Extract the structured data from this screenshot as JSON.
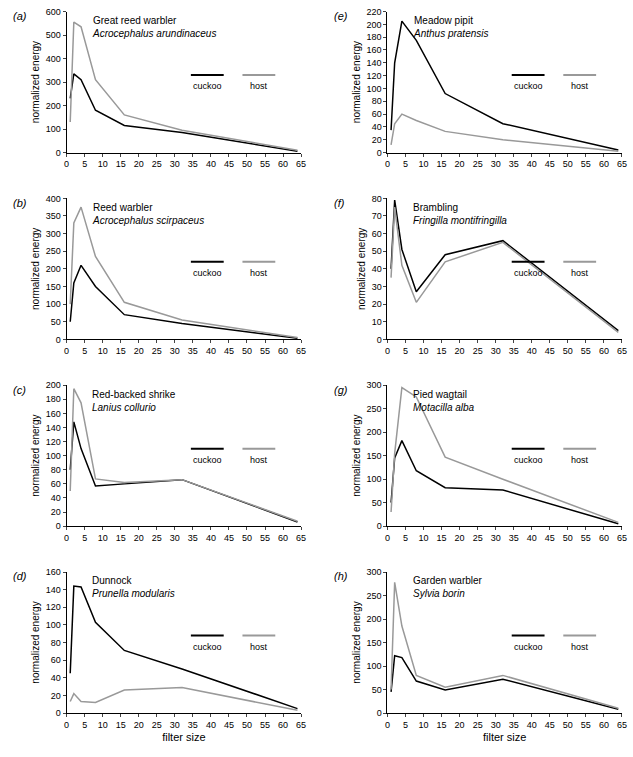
{
  "chart_data": [
    {
      "type": "line",
      "title": "Great reed warbler",
      "subtitle": "Acrocephalus arundinaceus",
      "annotations": [
        "(a)"
      ],
      "y_label": "normalized energy",
      "x": [
        1,
        2,
        4,
        8,
        16,
        32,
        64
      ],
      "series": [
        {
          "name": "cuckoo",
          "color": "#000000",
          "values": [
            230,
            335,
            310,
            180,
            115,
            85,
            5
          ]
        },
        {
          "name": "host",
          "color": "#999999",
          "values": [
            130,
            555,
            535,
            310,
            160,
            95,
            10
          ]
        }
      ],
      "xlim": [
        0,
        65
      ],
      "xticks": [
        0,
        5,
        10,
        15,
        20,
        25,
        30,
        35,
        40,
        45,
        50,
        55,
        60,
        65
      ],
      "ylim": [
        0,
        600
      ],
      "yticks": [
        0,
        100,
        200,
        300,
        400,
        500,
        600
      ],
      "grid": false
    },
    {
      "type": "line",
      "title": "Reed warbler",
      "subtitle": "Acrocephalus scirpaceus",
      "annotations": [
        "(b)"
      ],
      "y_label": "normalized energy",
      "x": [
        1,
        2,
        4,
        8,
        16,
        32,
        64
      ],
      "series": [
        {
          "name": "cuckoo",
          "color": "#000000",
          "values": [
            50,
            160,
            210,
            150,
            70,
            45,
            3
          ]
        },
        {
          "name": "host",
          "color": "#999999",
          "values": [
            100,
            330,
            375,
            235,
            105,
            55,
            5
          ]
        }
      ],
      "xlim": [
        0,
        65
      ],
      "xticks": [
        0,
        5,
        10,
        15,
        20,
        25,
        30,
        35,
        40,
        45,
        50,
        55,
        60,
        65
      ],
      "ylim": [
        0,
        400
      ],
      "yticks": [
        0,
        50,
        100,
        150,
        200,
        250,
        300,
        350,
        400
      ],
      "grid": false
    },
    {
      "type": "line",
      "title": "Red-backed shrike",
      "subtitle": "Lanius collurio",
      "annotations": [
        "(c)"
      ],
      "y_label": "normalized energy",
      "x": [
        1,
        2,
        4,
        8,
        16,
        32,
        64
      ],
      "series": [
        {
          "name": "cuckoo",
          "color": "#000000",
          "values": [
            80,
            148,
            110,
            57,
            60,
            66,
            6
          ]
        },
        {
          "name": "host",
          "color": "#999999",
          "values": [
            50,
            195,
            175,
            67,
            62,
            66,
            7
          ]
        }
      ],
      "xlim": [
        0,
        65
      ],
      "xticks": [
        0,
        5,
        10,
        15,
        20,
        25,
        30,
        35,
        40,
        45,
        50,
        55,
        60,
        65
      ],
      "ylim": [
        0,
        200
      ],
      "yticks": [
        0,
        20,
        40,
        60,
        80,
        100,
        120,
        140,
        160,
        180,
        200
      ],
      "grid": false
    },
    {
      "type": "line",
      "title": "Dunnock",
      "subtitle": "Prunella modularis",
      "annotations": [
        "(d)"
      ],
      "y_label": "normalized energy",
      "x_label": "filter size",
      "x": [
        1,
        2,
        4,
        8,
        16,
        32,
        64
      ],
      "series": [
        {
          "name": "cuckoo",
          "color": "#000000",
          "values": [
            45,
            144,
            143,
            103,
            71,
            50,
            5
          ]
        },
        {
          "name": "host",
          "color": "#999999",
          "values": [
            13,
            22,
            13,
            12,
            26,
            29,
            3
          ]
        }
      ],
      "xlim": [
        0,
        65
      ],
      "xticks": [
        0,
        5,
        10,
        15,
        20,
        25,
        30,
        35,
        40,
        45,
        50,
        55,
        60,
        65
      ],
      "ylim": [
        0,
        160
      ],
      "yticks": [
        0,
        20,
        40,
        60,
        80,
        100,
        120,
        140,
        160
      ],
      "grid": false
    },
    {
      "type": "line",
      "title": "Meadow pipit",
      "subtitle": "Anthus pratensis",
      "annotations": [
        "(e)"
      ],
      "y_label": "normalized energy",
      "x": [
        1,
        2,
        4,
        8,
        16,
        32,
        64
      ],
      "series": [
        {
          "name": "cuckoo",
          "color": "#000000",
          "values": [
            35,
            140,
            205,
            175,
            92,
            45,
            4
          ]
        },
        {
          "name": "host",
          "color": "#999999",
          "values": [
            12,
            45,
            60,
            50,
            33,
            20,
            2
          ]
        }
      ],
      "xlim": [
        0,
        65
      ],
      "xticks": [
        0,
        5,
        10,
        15,
        20,
        25,
        30,
        35,
        40,
        45,
        50,
        55,
        60,
        65
      ],
      "ylim": [
        0,
        220
      ],
      "yticks": [
        0,
        20,
        40,
        60,
        80,
        100,
        120,
        140,
        160,
        180,
        200,
        220
      ],
      "grid": false
    },
    {
      "type": "line",
      "title": "Brambling",
      "subtitle": "Fringilla montifringilla",
      "annotations": [
        "(f)"
      ],
      "y_label": "normalized energy",
      "x": [
        1,
        2,
        4,
        8,
        16,
        32,
        64
      ],
      "series": [
        {
          "name": "cuckoo",
          "color": "#000000",
          "values": [
            40,
            79,
            51,
            27,
            48,
            56,
            5
          ]
        },
        {
          "name": "host",
          "color": "#999999",
          "values": [
            35,
            75,
            42,
            21,
            44,
            55,
            4
          ]
        }
      ],
      "xlim": [
        0,
        65
      ],
      "xticks": [
        0,
        5,
        10,
        15,
        20,
        25,
        30,
        35,
        40,
        45,
        50,
        55,
        60,
        65
      ],
      "ylim": [
        0,
        80
      ],
      "yticks": [
        0,
        10,
        20,
        30,
        40,
        50,
        60,
        70,
        80
      ],
      "grid": false
    },
    {
      "type": "line",
      "title": "Pied wagtail",
      "subtitle": "Motacilla alba",
      "annotations": [
        "(g)"
      ],
      "y_label": "normalized energy",
      "x": [
        1,
        2,
        4,
        8,
        16,
        32,
        64
      ],
      "series": [
        {
          "name": "cuckoo",
          "color": "#000000",
          "values": [
            50,
            145,
            182,
            118,
            82,
            77,
            5
          ]
        },
        {
          "name": "host",
          "color": "#999999",
          "values": [
            30,
            155,
            295,
            275,
            147,
            100,
            8
          ]
        }
      ],
      "xlim": [
        0,
        65
      ],
      "xticks": [
        0,
        5,
        10,
        15,
        20,
        25,
        30,
        35,
        40,
        45,
        50,
        55,
        60,
        65
      ],
      "ylim": [
        0,
        300
      ],
      "yticks": [
        0,
        50,
        100,
        150,
        200,
        250,
        300
      ],
      "grid": false
    },
    {
      "type": "line",
      "title": "Garden warbler",
      "subtitle": "Sylvia borin",
      "annotations": [
        "(h)"
      ],
      "y_label": "normalized energy",
      "x_label": "filter size",
      "x": [
        1,
        2,
        4,
        8,
        16,
        32,
        64
      ],
      "series": [
        {
          "name": "cuckoo",
          "color": "#000000",
          "values": [
            45,
            122,
            118,
            68,
            49,
            72,
            8
          ]
        },
        {
          "name": "host",
          "color": "#999999",
          "values": [
            50,
            278,
            185,
            80,
            55,
            80,
            10
          ]
        }
      ],
      "xlim": [
        0,
        65
      ],
      "xticks": [
        0,
        5,
        10,
        15,
        20,
        25,
        30,
        35,
        40,
        45,
        50,
        55,
        60,
        65
      ],
      "ylim": [
        0,
        300
      ],
      "yticks": [
        0,
        50,
        100,
        150,
        200,
        250,
        300
      ],
      "grid": false
    }
  ]
}
